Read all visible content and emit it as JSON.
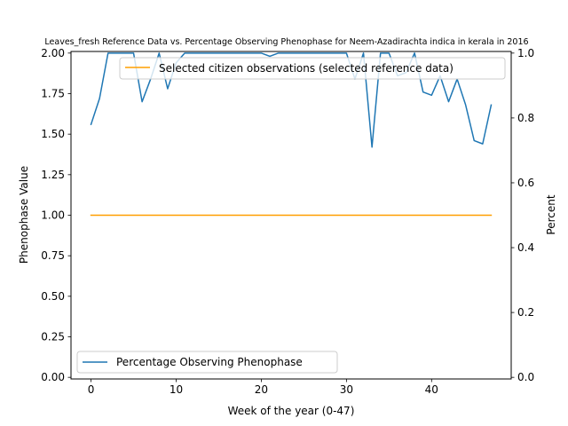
{
  "chart_data": {
    "type": "line",
    "title": "Leaves_fresh Reference Data vs. Percentage Observing Phenophase for Neem-Azadirachta indica in kerala in 2016",
    "xlabel": "Week of the year (0-47)",
    "ylabel_left": "Phenophase Value",
    "ylabel_right": "Percent",
    "xlim": [
      -2.35,
      49.35
    ],
    "ylim_left": [
      -0.01,
      2.01
    ],
    "ylim_right": [
      -0.005,
      1.005
    ],
    "x_ticks": [
      0,
      10,
      20,
      30,
      40
    ],
    "x_tick_labels": [
      "0",
      "10",
      "20",
      "30",
      "40"
    ],
    "y_ticks_left": [
      0,
      0.25,
      0.5,
      0.75,
      1.0,
      1.25,
      1.5,
      1.75,
      2.0
    ],
    "y_tick_labels_left": [
      "0.00",
      "0.25",
      "0.50",
      "0.75",
      "1.00",
      "1.25",
      "1.50",
      "1.75",
      "2.00"
    ],
    "y_ticks_right": [
      0,
      0.2,
      0.4,
      0.6,
      0.8,
      1.0
    ],
    "y_tick_labels_right": [
      "0.0",
      "0.2",
      "0.4",
      "0.6",
      "0.8",
      "1.0"
    ],
    "grid": false,
    "series": [
      {
        "name": "Selected citizen observations (selected reference data)",
        "axis": "left",
        "color": "#ff9f00",
        "x": [
          0,
          47
        ],
        "y": [
          1.0,
          1.0
        ],
        "legend_position": "upper-right"
      },
      {
        "name": "Percentage Observing Phenophase",
        "axis": "right",
        "color": "#1f77b4",
        "x": [
          0,
          1,
          2,
          3,
          4,
          5,
          6,
          7,
          8,
          9,
          10,
          11,
          12,
          13,
          14,
          15,
          16,
          17,
          18,
          19,
          20,
          21,
          22,
          23,
          24,
          25,
          26,
          27,
          28,
          29,
          30,
          31,
          32,
          33,
          34,
          35,
          36,
          37,
          38,
          39,
          40,
          41,
          42,
          43,
          44,
          45,
          46,
          47
        ],
        "y": [
          0.78,
          0.86,
          1.0,
          1.0,
          1.0,
          1.0,
          0.85,
          0.92,
          1.0,
          0.89,
          0.97,
          1.0,
          1.0,
          1.0,
          1.0,
          1.0,
          1.0,
          1.0,
          1.0,
          1.0,
          1.0,
          0.99,
          1.0,
          1.0,
          1.0,
          1.0,
          1.0,
          1.0,
          1.0,
          1.0,
          1.0,
          0.92,
          1.0,
          0.71,
          1.0,
          1.0,
          0.93,
          0.94,
          1.0,
          0.88,
          0.87,
          0.93,
          0.85,
          0.92,
          0.84,
          0.73,
          0.72,
          0.84
        ],
        "legend_position": "lower-left"
      }
    ]
  }
}
